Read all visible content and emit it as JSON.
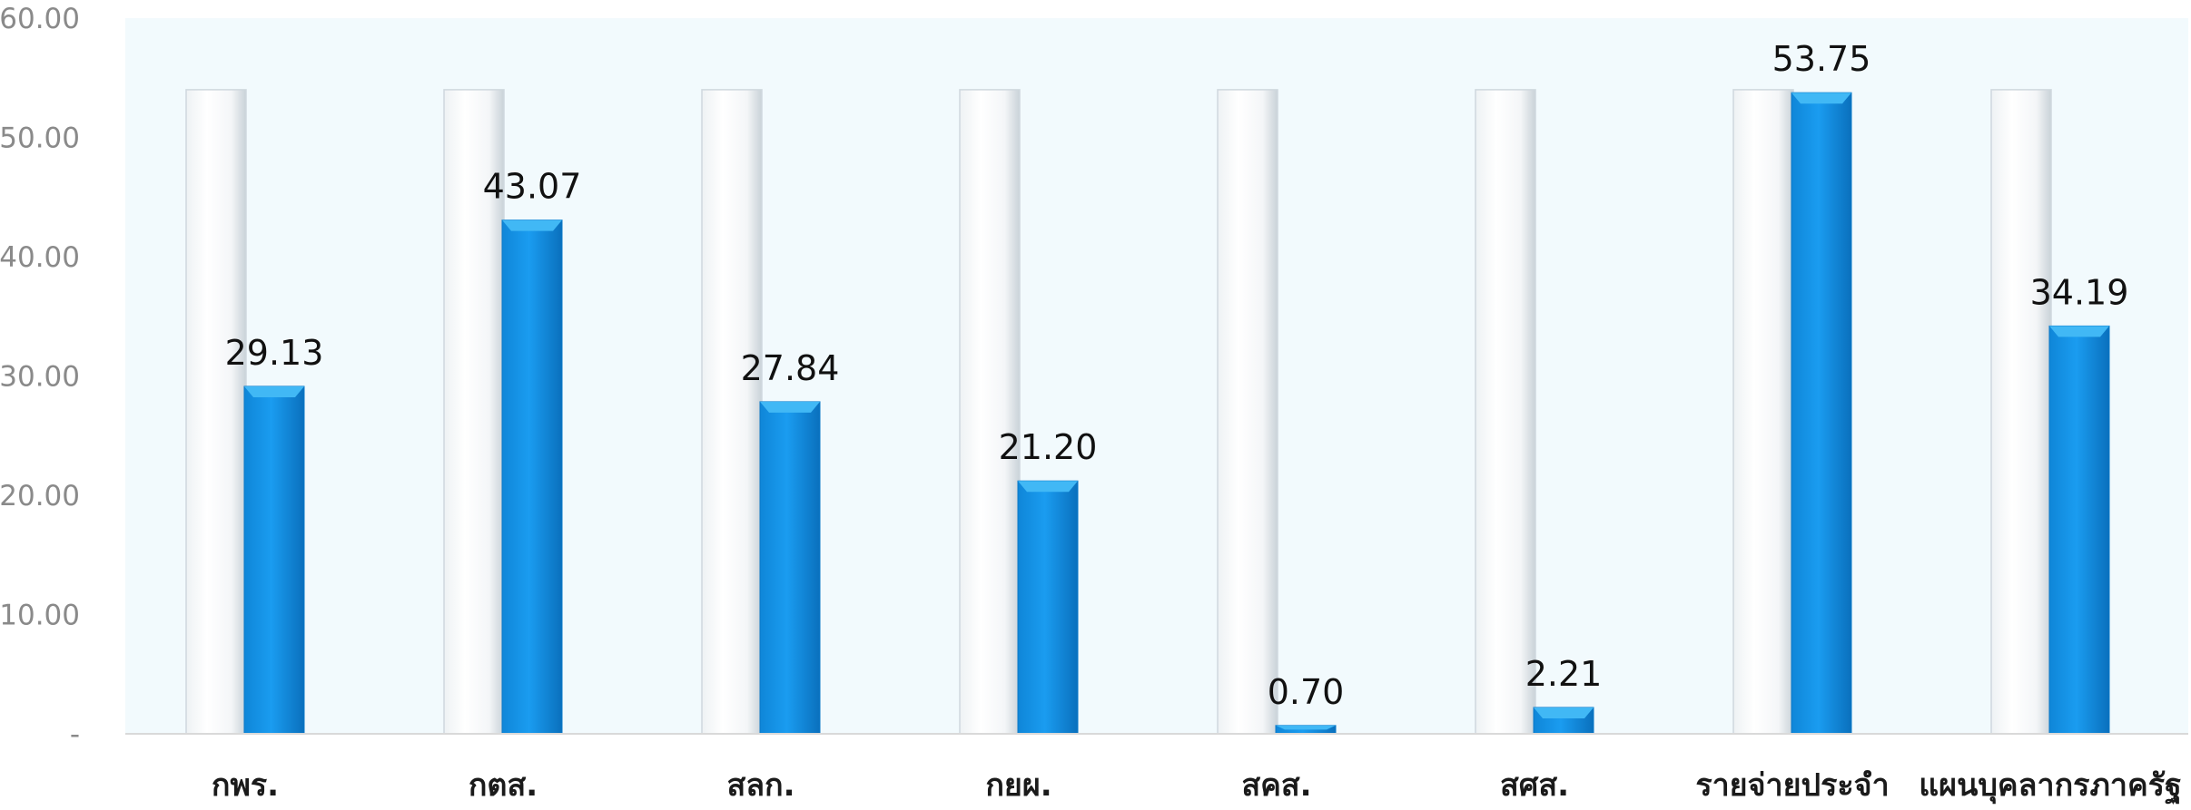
{
  "chart_data": {
    "type": "bar",
    "categories": [
      "กพร.",
      "กตส.",
      "สลก.",
      "กยผ.",
      "สคส.",
      "สศส.",
      "รายจ่ายประจำ",
      "แผนบุคลากรภาครัฐ"
    ],
    "series": [
      {
        "values": [
          54,
          54,
          54,
          54,
          54,
          54,
          54,
          54
        ]
      },
      {
        "values": [
          29.13,
          43.07,
          27.84,
          21.2,
          0.7,
          2.21,
          53.75,
          34.19
        ]
      }
    ],
    "data_labels": [
      "29.13",
      "43.07",
      "27.84",
      "21.20",
      "0.70",
      "2.21",
      "53.75",
      "34.19"
    ],
    "yticks": [
      "-",
      "10.00",
      "20.00",
      "30.00",
      "40.00",
      "50.00",
      "60.00"
    ],
    "ylim": [
      0,
      60
    ],
    "title": "",
    "xlabel": "",
    "ylabel": "",
    "grid": false,
    "legend": "none",
    "colors": {
      "plot_background": "#f2fafd",
      "reference_bar": "#ffffff",
      "reference_bar_edge": "#cfd8de",
      "value_bar": "#1295ea",
      "value_bar_light": "#41b8f5",
      "value_bar_dark": "#0a78c8",
      "axis_line": "#d9d9d9"
    }
  }
}
